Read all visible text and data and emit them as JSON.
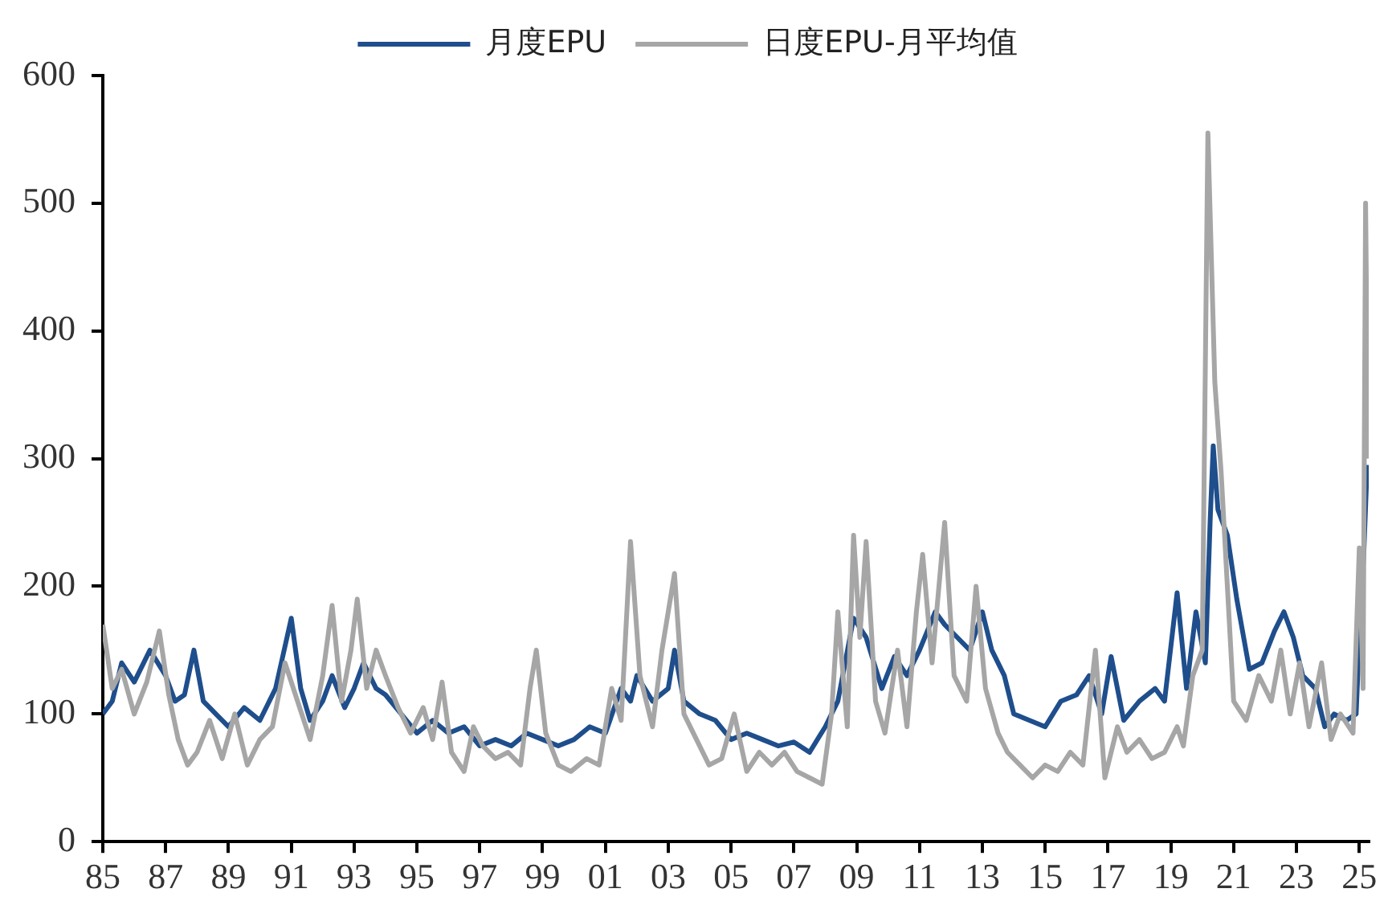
{
  "chart_data": {
    "type": "line",
    "legend": "top",
    "grid": false,
    "marker": "none",
    "line_style": "solid",
    "xlim": [
      1985,
      2025.3
    ],
    "ylim": [
      0,
      600
    ],
    "yticks": [
      0,
      100,
      200,
      300,
      400,
      500,
      600
    ],
    "xticks": [
      {
        "value": 1985,
        "label": "85"
      },
      {
        "value": 1987,
        "label": "87"
      },
      {
        "value": 1989,
        "label": "89"
      },
      {
        "value": 1991,
        "label": "91"
      },
      {
        "value": 1993,
        "label": "93"
      },
      {
        "value": 1995,
        "label": "95"
      },
      {
        "value": 1997,
        "label": "97"
      },
      {
        "value": 1999,
        "label": "99"
      },
      {
        "value": 2001,
        "label": "01"
      },
      {
        "value": 2003,
        "label": "03"
      },
      {
        "value": 2005,
        "label": "05"
      },
      {
        "value": 2007,
        "label": "07"
      },
      {
        "value": 2009,
        "label": "09"
      },
      {
        "value": 2011,
        "label": "11"
      },
      {
        "value": 2013,
        "label": "13"
      },
      {
        "value": 2015,
        "label": "15"
      },
      {
        "value": 2017,
        "label": "17"
      },
      {
        "value": 2019,
        "label": "19"
      },
      {
        "value": 2021,
        "label": "21"
      },
      {
        "value": 2023,
        "label": "23"
      },
      {
        "value": 2025,
        "label": "25"
      }
    ],
    "series": [
      {
        "name": "日度EPU-月平均值",
        "color": "#a6a6a6",
        "x": [
          1985,
          1985.3,
          1985.6,
          1986,
          1986.4,
          1986.8,
          1987.1,
          1987.4,
          1987.7,
          1988,
          1988.4,
          1988.8,
          1989.2,
          1989.6,
          1990,
          1990.4,
          1990.8,
          1991.2,
          1991.6,
          1992,
          1992.3,
          1992.6,
          1992.9,
          1993.1,
          1993.4,
          1993.7,
          1994,
          1994.4,
          1994.8,
          1995.2,
          1995.5,
          1995.8,
          1996.1,
          1996.5,
          1996.8,
          1997.1,
          1997.5,
          1997.9,
          1998.3,
          1998.6,
          1998.8,
          1999.1,
          1999.5,
          1999.9,
          2000.4,
          2000.8,
          2001.2,
          2001.5,
          2001.8,
          2002.1,
          2002.5,
          2002.8,
          2003.2,
          2003.5,
          2003.9,
          2004.3,
          2004.7,
          2005.1,
          2005.5,
          2005.9,
          2006.3,
          2006.7,
          2007.1,
          2007.5,
          2007.9,
          2008.2,
          2008.4,
          2008.7,
          2008.9,
          2009.1,
          2009.3,
          2009.6,
          2009.9,
          2010.3,
          2010.6,
          2010.9,
          2011.1,
          2011.4,
          2011.8,
          2012.1,
          2012.5,
          2012.8,
          2013.1,
          2013.5,
          2013.8,
          2014.2,
          2014.6,
          2015,
          2015.4,
          2015.8,
          2016.2,
          2016.6,
          2016.9,
          2017.3,
          2017.6,
          2018,
          2018.4,
          2018.8,
          2019.2,
          2019.4,
          2019.7,
          2020,
          2020.18,
          2020.4,
          2020.6,
          2020.8,
          2021,
          2021.4,
          2021.8,
          2022.2,
          2022.5,
          2022.8,
          2023.1,
          2023.4,
          2023.8,
          2024.1,
          2024.4,
          2024.8,
          2025,
          2025.12,
          2025.2,
          2025.28
        ],
        "values": [
          170,
          120,
          135,
          100,
          125,
          165,
          115,
          80,
          60,
          70,
          95,
          65,
          100,
          60,
          80,
          90,
          140,
          110,
          80,
          130,
          185,
          110,
          150,
          190,
          120,
          150,
          130,
          105,
          85,
          105,
          80,
          125,
          70,
          55,
          90,
          75,
          65,
          70,
          60,
          120,
          150,
          85,
          60,
          55,
          65,
          60,
          120,
          95,
          235,
          130,
          90,
          150,
          210,
          100,
          80,
          60,
          65,
          100,
          55,
          70,
          60,
          70,
          55,
          50,
          45,
          100,
          180,
          90,
          240,
          160,
          235,
          110,
          85,
          150,
          90,
          180,
          225,
          140,
          250,
          130,
          110,
          200,
          120,
          85,
          70,
          60,
          50,
          60,
          55,
          70,
          60,
          150,
          50,
          90,
          70,
          80,
          65,
          70,
          90,
          75,
          130,
          150,
          555,
          360,
          290,
          200,
          110,
          95,
          130,
          110,
          150,
          100,
          140,
          90,
          140,
          80,
          100,
          85,
          230,
          120,
          500,
          300
        ]
      },
      {
        "name": "月度EPU",
        "color": "#1f4e8c",
        "x": [
          1985,
          1985.3,
          1985.6,
          1986,
          1986.5,
          1987,
          1987.3,
          1987.6,
          1987.9,
          1988.2,
          1988.6,
          1989,
          1989.5,
          1990,
          1990.5,
          1991,
          1991.3,
          1991.6,
          1992,
          1992.3,
          1992.7,
          1993,
          1993.3,
          1993.7,
          1994,
          1994.5,
          1995,
          1995.5,
          1996,
          1996.5,
          1997,
          1997.5,
          1998,
          1998.5,
          1999,
          1999.5,
          2000,
          2000.5,
          2001,
          2001.5,
          2001.8,
          2002,
          2002.5,
          2003,
          2003.2,
          2003.5,
          2004,
          2004.5,
          2005,
          2005.5,
          2006,
          2006.5,
          2007,
          2007.5,
          2008,
          2008.4,
          2008.9,
          2009.3,
          2009.8,
          2010.2,
          2010.6,
          2011,
          2011.5,
          2011.8,
          2012.2,
          2012.6,
          2013,
          2013.3,
          2013.7,
          2014,
          2014.5,
          2015,
          2015.5,
          2016,
          2016.4,
          2016.8,
          2017.1,
          2017.5,
          2018,
          2018.5,
          2018.8,
          2019.2,
          2019.5,
          2019.8,
          2020.1,
          2020.25,
          2020.35,
          2020.5,
          2020.8,
          2021.1,
          2021.5,
          2021.9,
          2022.3,
          2022.6,
          2022.9,
          2023.2,
          2023.6,
          2023.9,
          2024.2,
          2024.6,
          2024.9,
          2025,
          2025.15,
          2025.25
        ],
        "values": [
          100,
          110,
          140,
          125,
          150,
          130,
          110,
          115,
          150,
          110,
          100,
          90,
          105,
          95,
          120,
          175,
          120,
          95,
          110,
          130,
          105,
          120,
          140,
          120,
          115,
          100,
          85,
          95,
          85,
          90,
          75,
          80,
          75,
          85,
          80,
          75,
          80,
          90,
          85,
          120,
          110,
          130,
          110,
          120,
          150,
          110,
          100,
          95,
          80,
          85,
          80,
          75,
          78,
          70,
          90,
          110,
          175,
          160,
          120,
          145,
          130,
          150,
          180,
          170,
          160,
          150,
          180,
          150,
          130,
          100,
          95,
          90,
          110,
          115,
          130,
          100,
          145,
          95,
          110,
          120,
          110,
          195,
          120,
          180,
          140,
          250,
          310,
          260,
          240,
          190,
          135,
          140,
          165,
          180,
          160,
          130,
          120,
          90,
          100,
          95,
          100,
          160,
          230,
          295
        ]
      }
    ]
  }
}
